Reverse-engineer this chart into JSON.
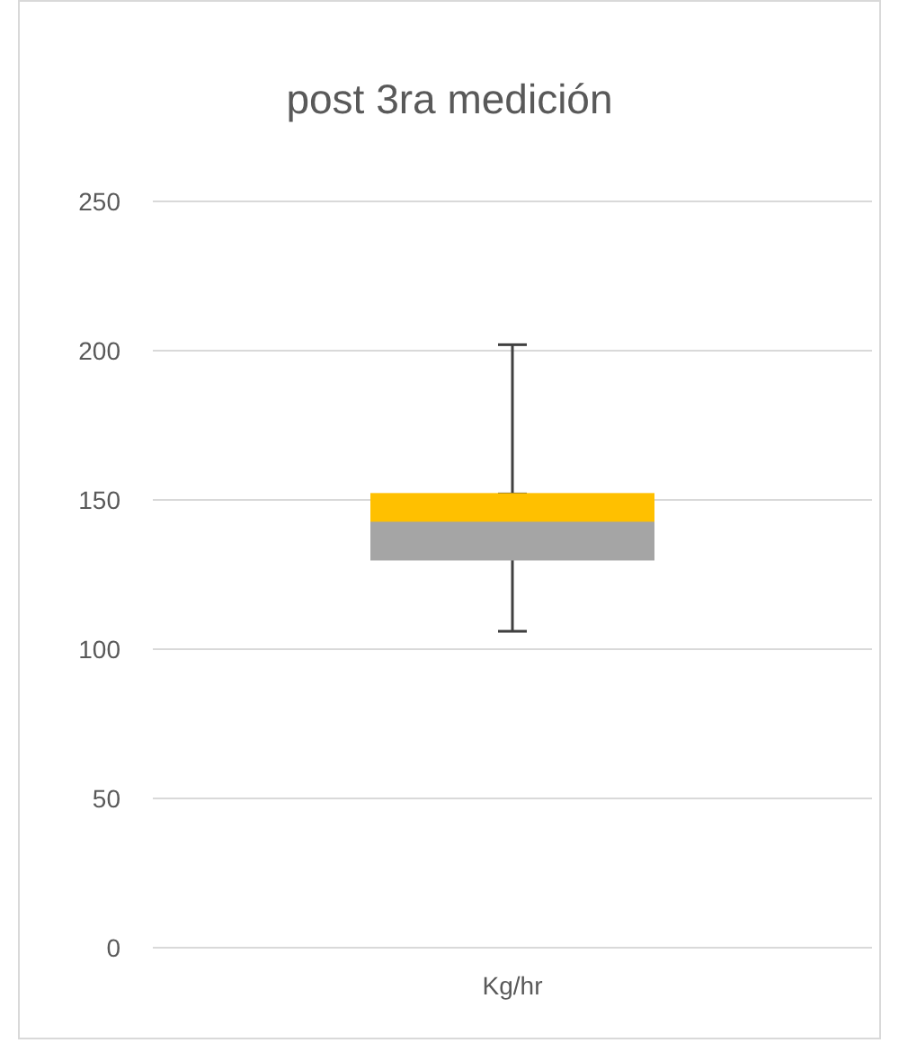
{
  "chart_data": {
    "type": "bar",
    "title": "post 3ra medición",
    "categories": [
      "Kg/hr"
    ],
    "series": [
      {
        "color": "#a5a5a5",
        "base": [
          130
        ],
        "values": [
          13
        ],
        "errors": [
          [
            106,
            143
          ]
        ]
      },
      {
        "color": "#ffc000",
        "base": [
          143
        ],
        "values": [
          9
        ],
        "errors": [
          [
            152,
            202
          ]
        ]
      }
    ],
    "ylim": [
      0,
      250
    ],
    "yticks": [
      0,
      50,
      100,
      150,
      200,
      250
    ],
    "grid": "y"
  }
}
